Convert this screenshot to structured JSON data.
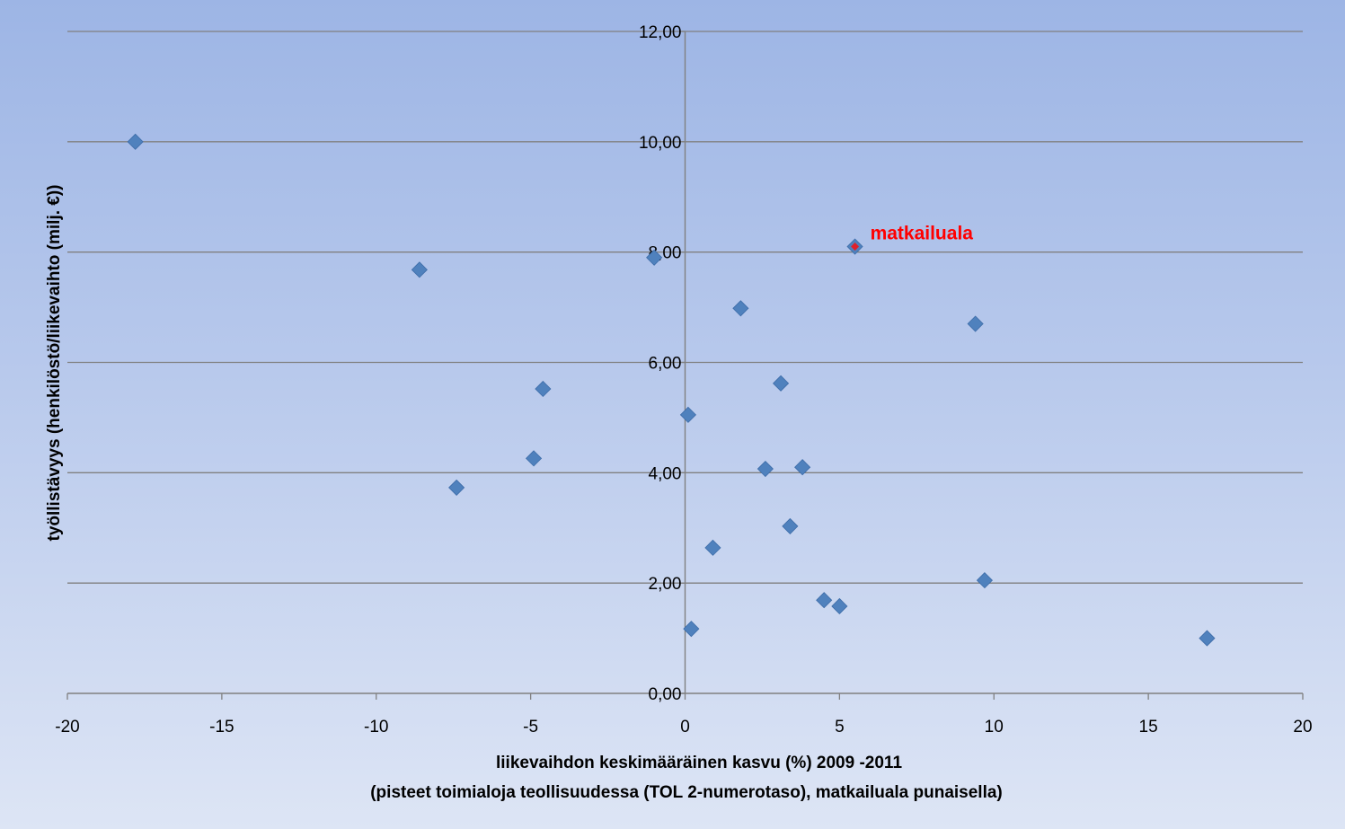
{
  "chart_data": {
    "type": "scatter",
    "xlabel_line1": "liikevaihdon keskimääräinen kasvu (%) 2009 -2011",
    "xlabel_line2": "(pisteet toimialoja teollisuudessa (TOL 2-numerotaso), matkailuala punaisella)",
    "ylabel": "työllistävyys (henkilöstö/liikevaihto (milj. €))",
    "xlim": [
      -20,
      20
    ],
    "ylim": [
      0,
      12
    ],
    "x_ticks": [
      -20,
      -15,
      -10,
      -5,
      0,
      5,
      10,
      15,
      20
    ],
    "x_tick_labels": [
      "-20",
      "-15",
      "-10",
      "-5",
      "0",
      "5",
      "10",
      "15",
      "20"
    ],
    "y_ticks": [
      0,
      2,
      4,
      6,
      8,
      10,
      12
    ],
    "y_tick_labels": [
      "0,00",
      "2,00",
      "4,00",
      "6,00",
      "8,00",
      "10,00",
      "12,00"
    ],
    "grid": "horizontal",
    "marker": "diamond",
    "colors": {
      "point": "#4f81bd",
      "highlight": "#e0202a",
      "annotation": "#ff0000",
      "grid": "#808080"
    },
    "points": [
      {
        "x": -17.8,
        "y": 10.0
      },
      {
        "x": -8.6,
        "y": 7.68
      },
      {
        "x": -7.4,
        "y": 3.73
      },
      {
        "x": -4.6,
        "y": 5.52
      },
      {
        "x": -4.9,
        "y": 4.26
      },
      {
        "x": -1.0,
        "y": 7.9
      },
      {
        "x": 0.1,
        "y": 5.05
      },
      {
        "x": 0.2,
        "y": 1.17
      },
      {
        "x": 0.9,
        "y": 2.64
      },
      {
        "x": 1.8,
        "y": 6.98
      },
      {
        "x": 2.6,
        "y": 4.07
      },
      {
        "x": 3.1,
        "y": 5.62
      },
      {
        "x": 3.4,
        "y": 3.03
      },
      {
        "x": 3.8,
        "y": 4.1
      },
      {
        "x": 4.5,
        "y": 1.69
      },
      {
        "x": 5.0,
        "y": 1.58
      },
      {
        "x": 9.4,
        "y": 6.7
      },
      {
        "x": 9.7,
        "y": 2.05
      },
      {
        "x": 16.9,
        "y": 1.0
      }
    ],
    "highlight_point": {
      "x": 5.5,
      "y": 8.1,
      "label": "matkailuala"
    }
  }
}
